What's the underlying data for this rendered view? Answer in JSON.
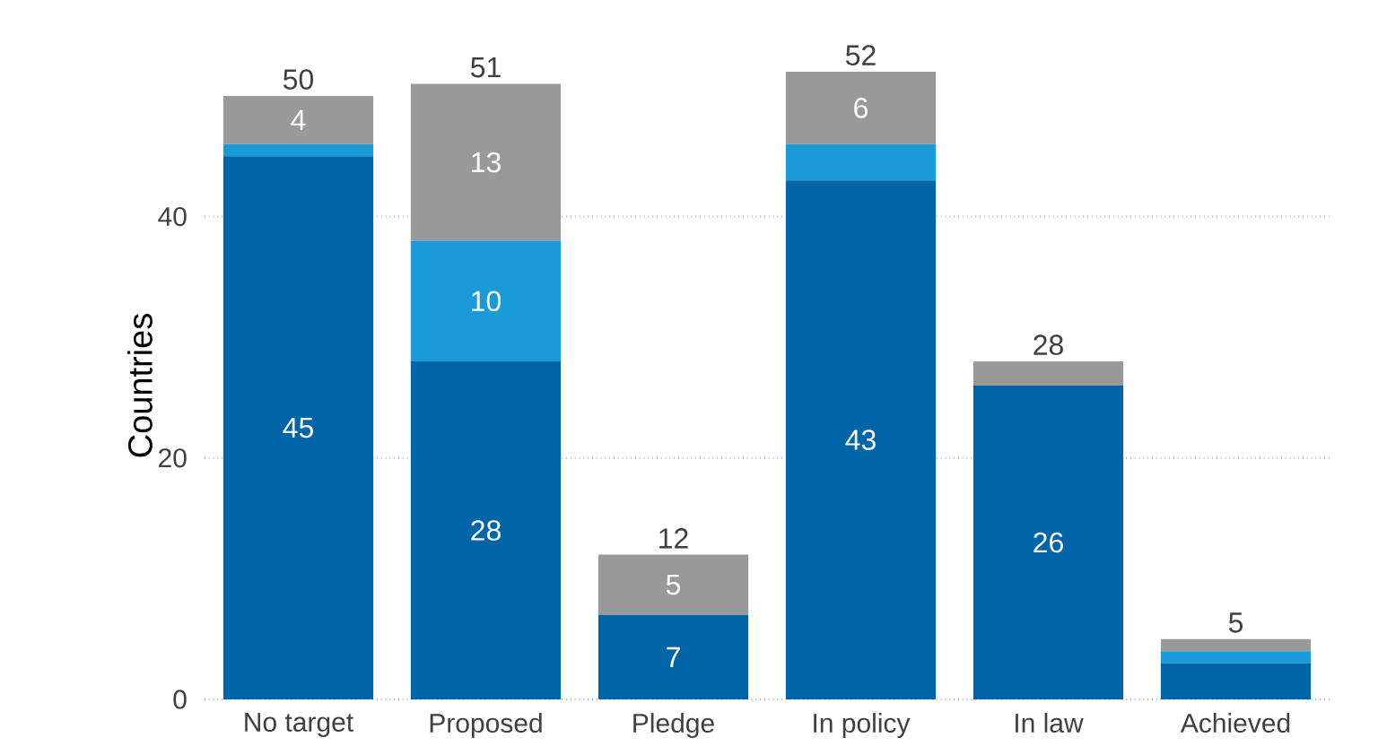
{
  "chart_data": {
    "type": "bar",
    "stacked": true,
    "ylabel": "Countries",
    "categories": [
      "No target",
      "Proposed",
      "Pledge",
      "In policy",
      "In law",
      "Achieved"
    ],
    "series": [
      {
        "color": "#0065a8",
        "values": [
          45,
          28,
          7,
          43,
          26,
          3
        ],
        "value_labels": [
          "45",
          "28",
          "7",
          "43",
          "26",
          null
        ]
      },
      {
        "color": "#1a9ad6",
        "values": [
          1,
          10,
          0,
          3,
          0,
          1
        ],
        "value_labels": [
          null,
          "10",
          null,
          null,
          null,
          null
        ]
      },
      {
        "color": "#999999",
        "values": [
          4,
          13,
          5,
          6,
          2,
          1
        ],
        "value_labels": [
          "4",
          "13",
          "5",
          "6",
          null,
          null
        ]
      }
    ],
    "totals": [
      "50",
      "51",
      "12",
      "52",
      "28",
      "5"
    ],
    "ylim": [
      0,
      52
    ],
    "yticks": [
      0,
      20,
      40
    ],
    "grid": "y"
  }
}
